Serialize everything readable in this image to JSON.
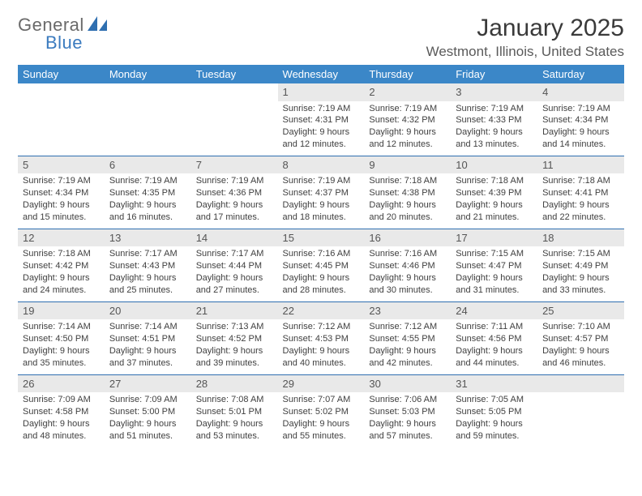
{
  "brand": {
    "part1": "General",
    "part2": "Blue"
  },
  "title": "January 2025",
  "location": "Westmont, Illinois, United States",
  "colors": {
    "header_bg": "#3b87c8",
    "header_text": "#ffffff",
    "daynum_bg": "#e9e9e9",
    "rule": "#2f6fb0",
    "brand_gray": "#6a6a6a",
    "brand_blue": "#3b7bbf"
  },
  "weekdays": [
    "Sunday",
    "Monday",
    "Tuesday",
    "Wednesday",
    "Thursday",
    "Friday",
    "Saturday"
  ],
  "weeks": [
    [
      null,
      null,
      null,
      {
        "n": "1",
        "sr": "Sunrise: 7:19 AM",
        "ss": "Sunset: 4:31 PM",
        "d1": "Daylight: 9 hours",
        "d2": "and 12 minutes."
      },
      {
        "n": "2",
        "sr": "Sunrise: 7:19 AM",
        "ss": "Sunset: 4:32 PM",
        "d1": "Daylight: 9 hours",
        "d2": "and 12 minutes."
      },
      {
        "n": "3",
        "sr": "Sunrise: 7:19 AM",
        "ss": "Sunset: 4:33 PM",
        "d1": "Daylight: 9 hours",
        "d2": "and 13 minutes."
      },
      {
        "n": "4",
        "sr": "Sunrise: 7:19 AM",
        "ss": "Sunset: 4:34 PM",
        "d1": "Daylight: 9 hours",
        "d2": "and 14 minutes."
      }
    ],
    [
      {
        "n": "5",
        "sr": "Sunrise: 7:19 AM",
        "ss": "Sunset: 4:34 PM",
        "d1": "Daylight: 9 hours",
        "d2": "and 15 minutes."
      },
      {
        "n": "6",
        "sr": "Sunrise: 7:19 AM",
        "ss": "Sunset: 4:35 PM",
        "d1": "Daylight: 9 hours",
        "d2": "and 16 minutes."
      },
      {
        "n": "7",
        "sr": "Sunrise: 7:19 AM",
        "ss": "Sunset: 4:36 PM",
        "d1": "Daylight: 9 hours",
        "d2": "and 17 minutes."
      },
      {
        "n": "8",
        "sr": "Sunrise: 7:19 AM",
        "ss": "Sunset: 4:37 PM",
        "d1": "Daylight: 9 hours",
        "d2": "and 18 minutes."
      },
      {
        "n": "9",
        "sr": "Sunrise: 7:18 AM",
        "ss": "Sunset: 4:38 PM",
        "d1": "Daylight: 9 hours",
        "d2": "and 20 minutes."
      },
      {
        "n": "10",
        "sr": "Sunrise: 7:18 AM",
        "ss": "Sunset: 4:39 PM",
        "d1": "Daylight: 9 hours",
        "d2": "and 21 minutes."
      },
      {
        "n": "11",
        "sr": "Sunrise: 7:18 AM",
        "ss": "Sunset: 4:41 PM",
        "d1": "Daylight: 9 hours",
        "d2": "and 22 minutes."
      }
    ],
    [
      {
        "n": "12",
        "sr": "Sunrise: 7:18 AM",
        "ss": "Sunset: 4:42 PM",
        "d1": "Daylight: 9 hours",
        "d2": "and 24 minutes."
      },
      {
        "n": "13",
        "sr": "Sunrise: 7:17 AM",
        "ss": "Sunset: 4:43 PM",
        "d1": "Daylight: 9 hours",
        "d2": "and 25 minutes."
      },
      {
        "n": "14",
        "sr": "Sunrise: 7:17 AM",
        "ss": "Sunset: 4:44 PM",
        "d1": "Daylight: 9 hours",
        "d2": "and 27 minutes."
      },
      {
        "n": "15",
        "sr": "Sunrise: 7:16 AM",
        "ss": "Sunset: 4:45 PM",
        "d1": "Daylight: 9 hours",
        "d2": "and 28 minutes."
      },
      {
        "n": "16",
        "sr": "Sunrise: 7:16 AM",
        "ss": "Sunset: 4:46 PM",
        "d1": "Daylight: 9 hours",
        "d2": "and 30 minutes."
      },
      {
        "n": "17",
        "sr": "Sunrise: 7:15 AM",
        "ss": "Sunset: 4:47 PM",
        "d1": "Daylight: 9 hours",
        "d2": "and 31 minutes."
      },
      {
        "n": "18",
        "sr": "Sunrise: 7:15 AM",
        "ss": "Sunset: 4:49 PM",
        "d1": "Daylight: 9 hours",
        "d2": "and 33 minutes."
      }
    ],
    [
      {
        "n": "19",
        "sr": "Sunrise: 7:14 AM",
        "ss": "Sunset: 4:50 PM",
        "d1": "Daylight: 9 hours",
        "d2": "and 35 minutes."
      },
      {
        "n": "20",
        "sr": "Sunrise: 7:14 AM",
        "ss": "Sunset: 4:51 PM",
        "d1": "Daylight: 9 hours",
        "d2": "and 37 minutes."
      },
      {
        "n": "21",
        "sr": "Sunrise: 7:13 AM",
        "ss": "Sunset: 4:52 PM",
        "d1": "Daylight: 9 hours",
        "d2": "and 39 minutes."
      },
      {
        "n": "22",
        "sr": "Sunrise: 7:12 AM",
        "ss": "Sunset: 4:53 PM",
        "d1": "Daylight: 9 hours",
        "d2": "and 40 minutes."
      },
      {
        "n": "23",
        "sr": "Sunrise: 7:12 AM",
        "ss": "Sunset: 4:55 PM",
        "d1": "Daylight: 9 hours",
        "d2": "and 42 minutes."
      },
      {
        "n": "24",
        "sr": "Sunrise: 7:11 AM",
        "ss": "Sunset: 4:56 PM",
        "d1": "Daylight: 9 hours",
        "d2": "and 44 minutes."
      },
      {
        "n": "25",
        "sr": "Sunrise: 7:10 AM",
        "ss": "Sunset: 4:57 PM",
        "d1": "Daylight: 9 hours",
        "d2": "and 46 minutes."
      }
    ],
    [
      {
        "n": "26",
        "sr": "Sunrise: 7:09 AM",
        "ss": "Sunset: 4:58 PM",
        "d1": "Daylight: 9 hours",
        "d2": "and 48 minutes."
      },
      {
        "n": "27",
        "sr": "Sunrise: 7:09 AM",
        "ss": "Sunset: 5:00 PM",
        "d1": "Daylight: 9 hours",
        "d2": "and 51 minutes."
      },
      {
        "n": "28",
        "sr": "Sunrise: 7:08 AM",
        "ss": "Sunset: 5:01 PM",
        "d1": "Daylight: 9 hours",
        "d2": "and 53 minutes."
      },
      {
        "n": "29",
        "sr": "Sunrise: 7:07 AM",
        "ss": "Sunset: 5:02 PM",
        "d1": "Daylight: 9 hours",
        "d2": "and 55 minutes."
      },
      {
        "n": "30",
        "sr": "Sunrise: 7:06 AM",
        "ss": "Sunset: 5:03 PM",
        "d1": "Daylight: 9 hours",
        "d2": "and 57 minutes."
      },
      {
        "n": "31",
        "sr": "Sunrise: 7:05 AM",
        "ss": "Sunset: 5:05 PM",
        "d1": "Daylight: 9 hours",
        "d2": "and 59 minutes."
      },
      null
    ]
  ]
}
